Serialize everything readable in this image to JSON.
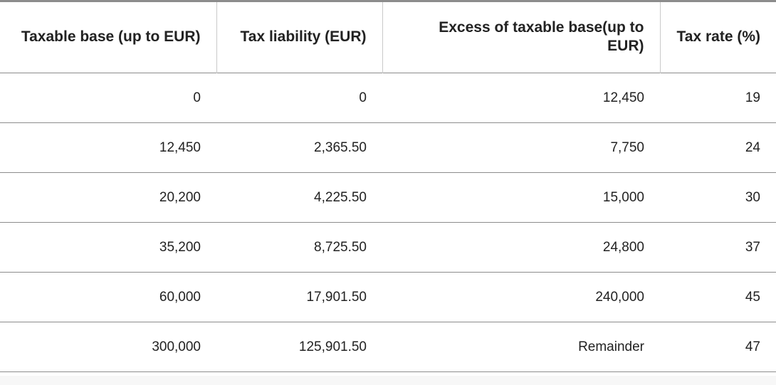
{
  "table": {
    "headers": [
      "Taxable base (up to EUR)",
      "Tax liability (EUR)",
      "Excess of taxable base(up to EUR)",
      "Tax rate (%)"
    ],
    "rows": [
      [
        "0",
        "0",
        "12,450",
        "19"
      ],
      [
        "12,450",
        "2,365.50",
        "7,750",
        "24"
      ],
      [
        "20,200",
        "4,225.50",
        "15,000",
        "30"
      ],
      [
        "35,200",
        "8,725.50",
        "24,800",
        "37"
      ],
      [
        "60,000",
        "17,901.50",
        "240,000",
        "45"
      ],
      [
        "300,000",
        "125,901.50",
        "Remainder",
        "47"
      ]
    ]
  }
}
